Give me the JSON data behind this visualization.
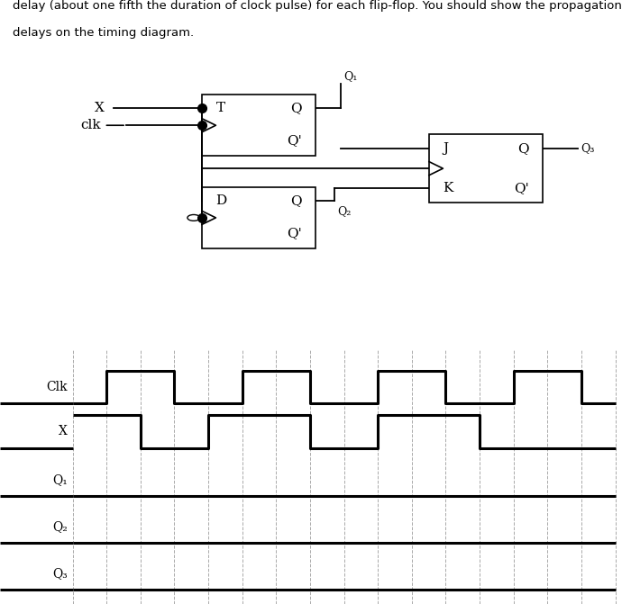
{
  "text_top": "delay (about one fifth the duration of clock pulse) for each flip-flop. You should show the propagation\ndelays on the timing diagram.",
  "text_fontsize": 9.5,
  "bg_color": "#ffffff",
  "timing": {
    "signal_labels": [
      "Clk",
      "X",
      "Q₁",
      "Q₂",
      "Q₃"
    ],
    "t_total": 16,
    "clk": [
      0,
      1,
      1,
      0,
      0,
      1,
      1,
      0,
      0,
      1,
      1,
      0,
      0,
      1,
      1,
      0
    ],
    "X": [
      1,
      1,
      0,
      0,
      1,
      1,
      1,
      0,
      0,
      1,
      1,
      1,
      0,
      0,
      0,
      0
    ],
    "Q1": [
      0,
      0,
      0,
      0,
      0,
      0,
      0,
      0,
      0,
      0,
      0,
      0,
      0,
      0,
      0,
      0
    ],
    "Q2": [
      0,
      0,
      0,
      0,
      0,
      0,
      0,
      0,
      0,
      0,
      0,
      0,
      0,
      0,
      0,
      0
    ],
    "Q3": [
      0,
      0,
      0,
      0,
      0,
      0,
      0,
      0,
      0,
      0,
      0,
      0,
      0,
      0,
      0,
      0
    ],
    "line_width": 2.2
  }
}
